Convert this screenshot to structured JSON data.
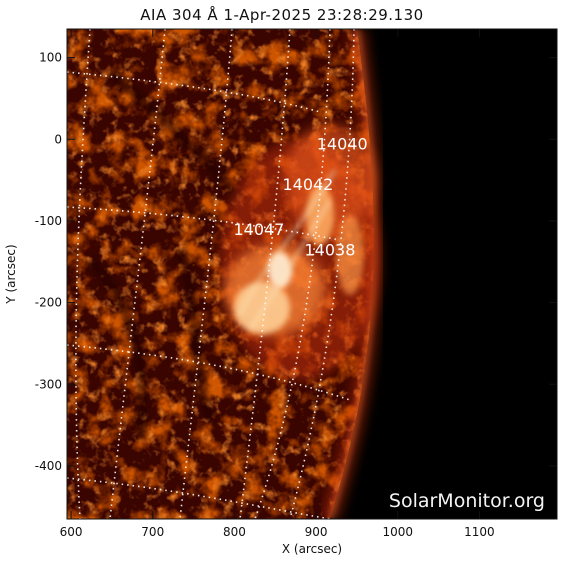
{
  "title": "AIA 304 Å   1-Apr-2025 23:28:29.130",
  "axes": {
    "xlabel": "X (arcsec)",
    "ylabel": "Y (arcsec)",
    "xticks": [
      "600",
      "700",
      "800",
      "900",
      "1000",
      "1100"
    ],
    "yticks": [
      "100",
      "0",
      "-100",
      "-200",
      "-300",
      "-400"
    ],
    "xlim": [
      595,
      1195
    ],
    "ylim": [
      -465,
      135
    ]
  },
  "active_regions": [
    {
      "label": "14040",
      "x": 932,
      "y": -5
    },
    {
      "label": "14042",
      "x": 890,
      "y": -55
    },
    {
      "label": "14047",
      "x": 830,
      "y": -110
    },
    {
      "label": "14038",
      "x": 917,
      "y": -135
    }
  ],
  "watermark": "SolarMonitor.org",
  "colors": {
    "background_space": "#000000",
    "plasma_dark": "#3a0500",
    "plasma_mid": "#a11d00",
    "plasma_bright": "#ff8a3a",
    "plasma_hot": "#ffe3b8",
    "grid": "#ffffff"
  }
}
